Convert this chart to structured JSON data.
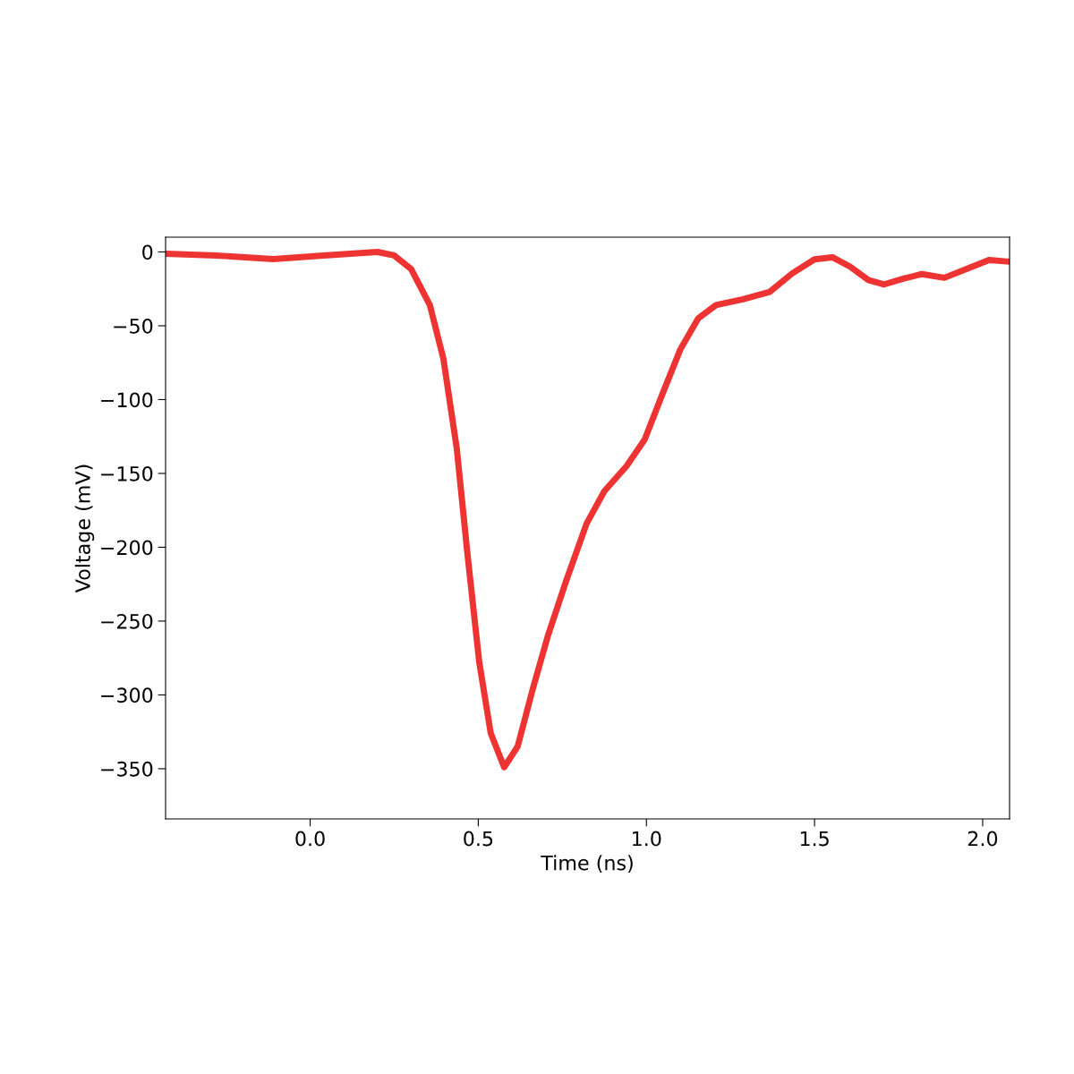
{
  "chart_data": {
    "type": "line",
    "xlabel": "Time (ns)",
    "ylabel": "Voltage (mV)",
    "xlim": [
      -0.43,
      2.08
    ],
    "ylim": [
      -384,
      10
    ],
    "xticks": [
      {
        "value": 0,
        "label": "0.0"
      },
      {
        "value": 0.5,
        "label": "0.5"
      },
      {
        "value": 1,
        "label": "1.0"
      },
      {
        "value": 1.5,
        "label": "1.5"
      },
      {
        "value": 2,
        "label": "2.0"
      }
    ],
    "yticks": [
      {
        "value": 0,
        "label": "0"
      },
      {
        "value": -50,
        "label": "−50"
      },
      {
        "value": -100,
        "label": "−100"
      },
      {
        "value": -150,
        "label": "−150"
      },
      {
        "value": -200,
        "label": "−200"
      },
      {
        "value": -250,
        "label": "−250"
      },
      {
        "value": -300,
        "label": "−300"
      },
      {
        "value": -350,
        "label": "−350"
      }
    ],
    "grid": false,
    "legend": false,
    "marker": "none",
    "line_style": "solid",
    "series": [
      {
        "color": "#ee3333",
        "x": [
          -0.43,
          -0.28,
          -0.11,
          0.04,
          0.2,
          0.25,
          0.3,
          0.356,
          0.396,
          0.436,
          0.468,
          0.503,
          0.537,
          0.577,
          0.617,
          0.662,
          0.707,
          0.761,
          0.822,
          0.875,
          0.941,
          0.995,
          1.048,
          1.101,
          1.154,
          1.207,
          1.287,
          1.367,
          1.434,
          1.5,
          1.553,
          1.606,
          1.66,
          1.707,
          1.766,
          1.819,
          1.886,
          1.952,
          2.019,
          2.08
        ],
        "values": [
          -1.2,
          -2.4,
          -4.8,
          -2.4,
          0,
          -2.4,
          -11.5,
          -36,
          -72,
          -133,
          -205,
          -278,
          -326,
          -349,
          -335,
          -296,
          -260,
          -223,
          -184,
          -162,
          -145,
          -127,
          -96,
          -66,
          -45,
          -36,
          -32,
          -27,
          -14.5,
          -5,
          -3.6,
          -10,
          -19,
          -22,
          -18,
          -15,
          -17.5,
          -11.5,
          -5.5,
          -6.6
        ]
      }
    ]
  }
}
